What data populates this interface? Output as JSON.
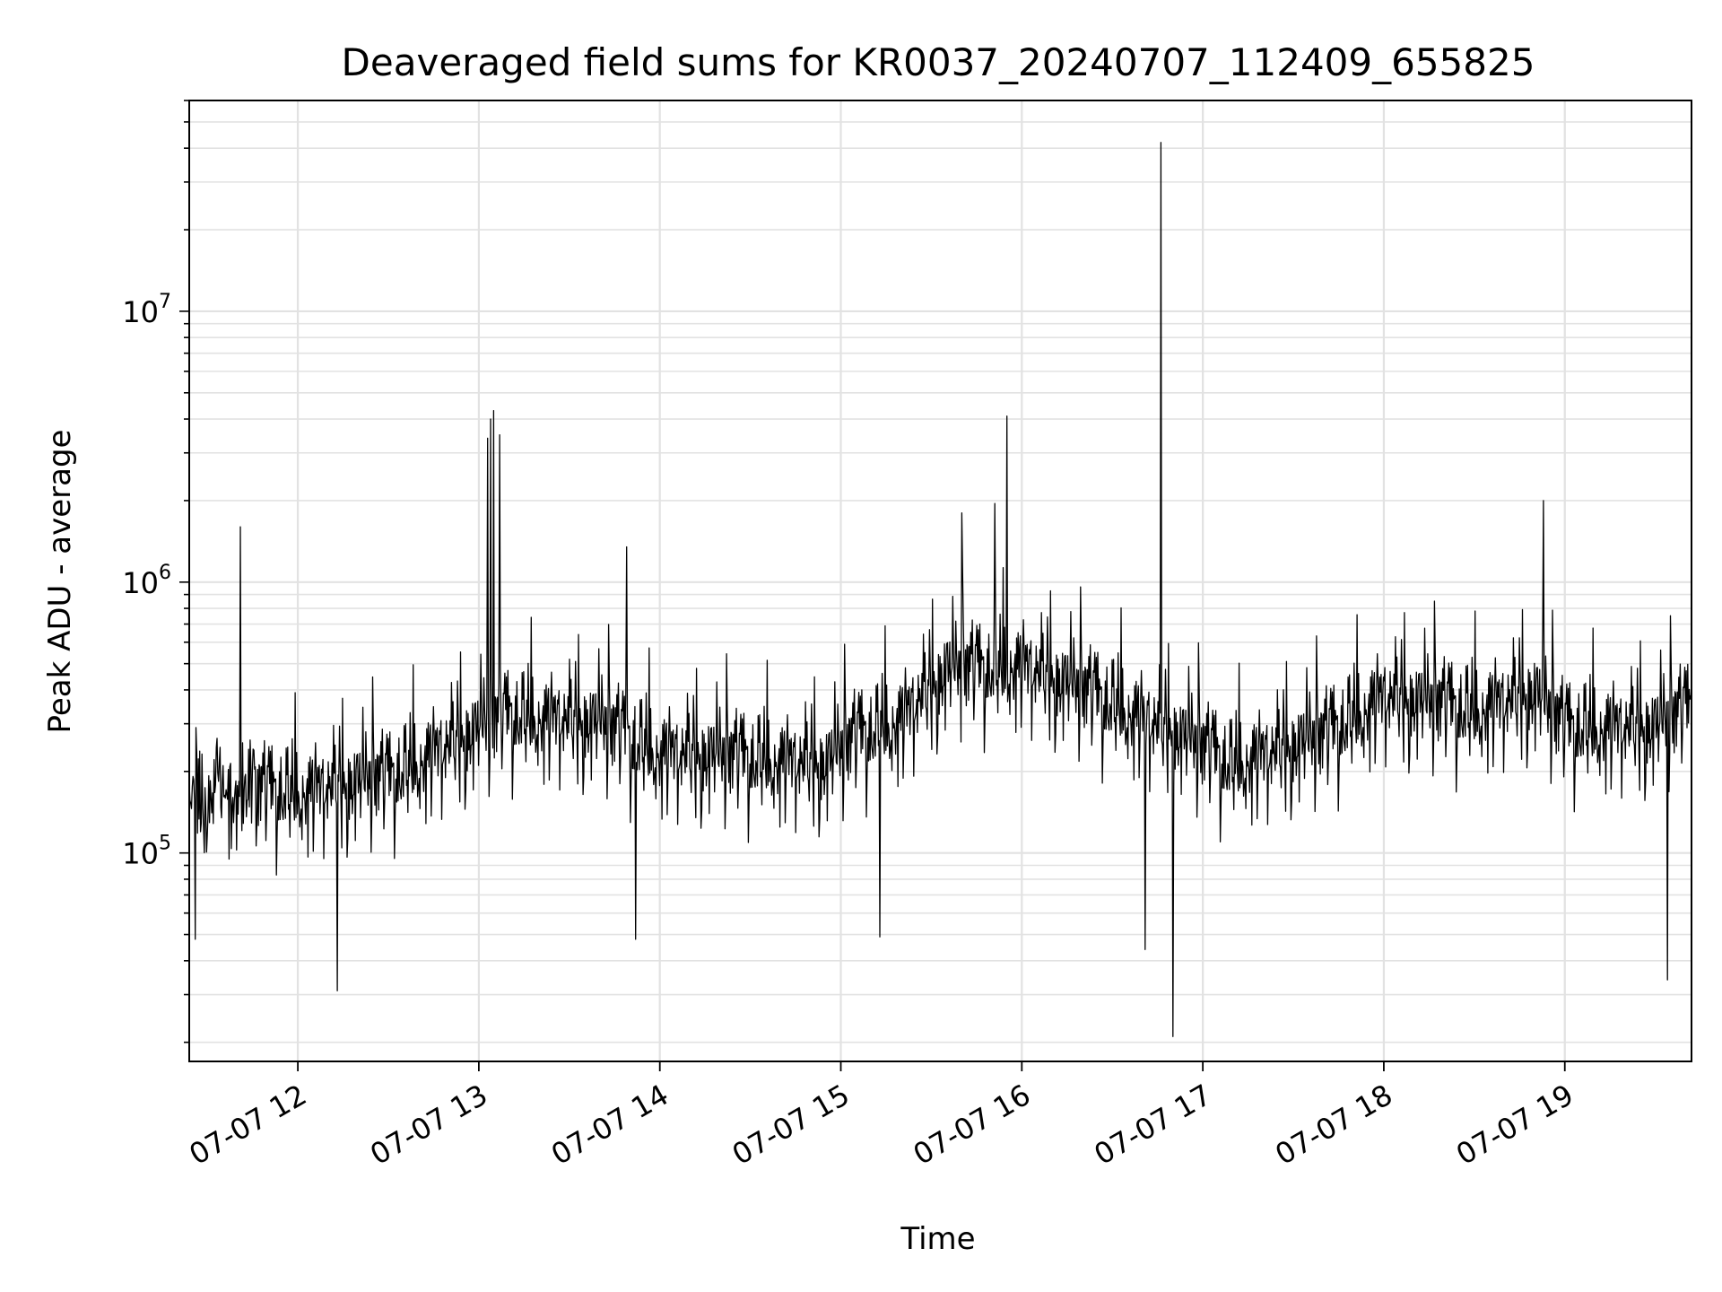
{
  "chart_data": {
    "type": "line",
    "title": "Deaveraged field sums for KR0037_20240707_112409_655825",
    "xlabel": "Time",
    "ylabel": "Peak ADU - average",
    "y_scale": "log",
    "xlim": [
      "07-07 11:24",
      "07-07 19:42"
    ],
    "ylim": [
      17000,
      60000000
    ],
    "grid": true,
    "x_ticks": [
      {
        "at": "07-07 12:00",
        "label": "07-07 12"
      },
      {
        "at": "07-07 13:00",
        "label": "07-07 13"
      },
      {
        "at": "07-07 14:00",
        "label": "07-07 14"
      },
      {
        "at": "07-07 15:00",
        "label": "07-07 15"
      },
      {
        "at": "07-07 16:00",
        "label": "07-07 16"
      },
      {
        "at": "07-07 17:00",
        "label": "07-07 17"
      },
      {
        "at": "07-07 18:00",
        "label": "07-07 18"
      },
      {
        "at": "07-07 19:00",
        "label": "07-07 19"
      }
    ],
    "y_ticks": [
      {
        "value": 100000,
        "base": "10",
        "exp": "5"
      },
      {
        "value": 1000000,
        "base": "10",
        "exp": "6"
      },
      {
        "value": 10000000,
        "base": "10",
        "exp": "7"
      }
    ],
    "series_color": "#000000",
    "baseline_profile": {
      "x": [
        "07-07 11:24",
        "07-07 12:00",
        "07-07 12:30",
        "07-07 12:55",
        "07-07 13:10",
        "07-07 13:40",
        "07-07 14:00",
        "07-07 14:30",
        "07-07 14:55",
        "07-07 15:05",
        "07-07 15:20",
        "07-07 15:35",
        "07-07 16:00",
        "07-07 16:30",
        "07-07 16:50",
        "07-07 17:10",
        "07-07 17:40",
        "07-07 18:00",
        "07-07 18:30",
        "07-07 18:50",
        "07-07 19:00",
        "07-07 19:30",
        "07-07 19:42"
      ],
      "y": [
        160000,
        150000,
        170000,
        240000,
        290000,
        270000,
        210000,
        200000,
        190000,
        240000,
        280000,
        420000,
        440000,
        320000,
        250000,
        190000,
        240000,
        340000,
        300000,
        350000,
        260000,
        260000,
        310000
      ]
    },
    "peaks": [
      {
        "x": "07-07 11:41",
        "y": 1600000
      },
      {
        "x": "07-07 13:03",
        "y": 3400000
      },
      {
        "x": "07-07 13:04",
        "y": 4000000
      },
      {
        "x": "07-07 13:05",
        "y": 4300000
      },
      {
        "x": "07-07 13:07",
        "y": 3500000
      },
      {
        "x": "07-07 13:49",
        "y": 1350000
      },
      {
        "x": "07-07 15:40",
        "y": 1800000
      },
      {
        "x": "07-07 15:51",
        "y": 1950000
      },
      {
        "x": "07-07 15:55",
        "y": 4100000
      },
      {
        "x": "07-07 16:46",
        "y": 42000000
      },
      {
        "x": "07-07 18:53",
        "y": 2000000
      }
    ],
    "dips": [
      {
        "x": "07-07 11:26",
        "y": 48000
      },
      {
        "x": "07-07 12:13",
        "y": 31000
      },
      {
        "x": "07-07 13:52",
        "y": 48000
      },
      {
        "x": "07-07 15:13",
        "y": 49000
      },
      {
        "x": "07-07 16:41",
        "y": 44000
      },
      {
        "x": "07-07 16:50",
        "y": 21000
      },
      {
        "x": "07-07 19:34",
        "y": 34000
      }
    ]
  }
}
